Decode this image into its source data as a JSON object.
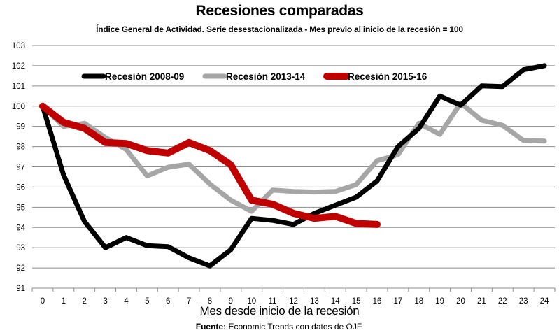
{
  "chart_data": {
    "type": "line",
    "title": "Recesiones comparadas",
    "subtitle": "Índice General de Actividad. Serie desestacionalizada - Mes previo al inicio de la recesión = 100",
    "xlabel": "Mes desde inicio de la recesión",
    "ylabel": "",
    "source_label": "Fuente:",
    "source_text": "Economic Trends con datos de OJF.",
    "x": [
      0,
      1,
      2,
      3,
      4,
      5,
      6,
      7,
      8,
      9,
      10,
      11,
      12,
      13,
      14,
      15,
      16,
      17,
      18,
      19,
      20,
      21,
      22,
      23,
      24
    ],
    "x_tick_labels": [
      "0",
      "1",
      "2",
      "3",
      "4",
      "5",
      "6",
      "7",
      "8",
      "9",
      "10",
      "11",
      "12",
      "13",
      "14",
      "15",
      "16",
      "17",
      "18",
      "19",
      "20",
      "21",
      "22",
      "23",
      "24"
    ],
    "ylim": [
      91,
      103
    ],
    "y_ticks": [
      91,
      92,
      93,
      94,
      95,
      96,
      97,
      98,
      99,
      100,
      101,
      102,
      103
    ],
    "grid": true,
    "legend_position": "top-left inside",
    "series": [
      {
        "name": "Recesión 2008-09",
        "color": "#000000",
        "values": [
          100,
          96.6,
          94.3,
          93.0,
          93.5,
          93.1,
          93.05,
          92.5,
          92.1,
          92.9,
          94.45,
          94.35,
          94.15,
          94.7,
          95.1,
          95.5,
          96.3,
          98.0,
          98.9,
          100.5,
          100.05,
          101.0,
          100.97,
          101.8,
          102.0
        ]
      },
      {
        "name": "Recesión 2013-14",
        "color": "#a6a6a6",
        "values": [
          100,
          99.0,
          99.15,
          98.45,
          97.85,
          96.55,
          96.98,
          97.13,
          96.15,
          95.35,
          94.8,
          95.85,
          95.78,
          95.75,
          95.78,
          96.12,
          97.3,
          97.6,
          99.15,
          98.6,
          100.15,
          99.3,
          99.05,
          98.3,
          98.27
        ]
      },
      {
        "name": "Recesión 2015-16",
        "color": "#c00000",
        "values": [
          100,
          99.2,
          98.9,
          98.2,
          98.15,
          97.8,
          97.68,
          98.2,
          97.8,
          97.1,
          95.35,
          95.15,
          94.7,
          94.45,
          94.55,
          94.2,
          94.15
        ]
      }
    ]
  }
}
